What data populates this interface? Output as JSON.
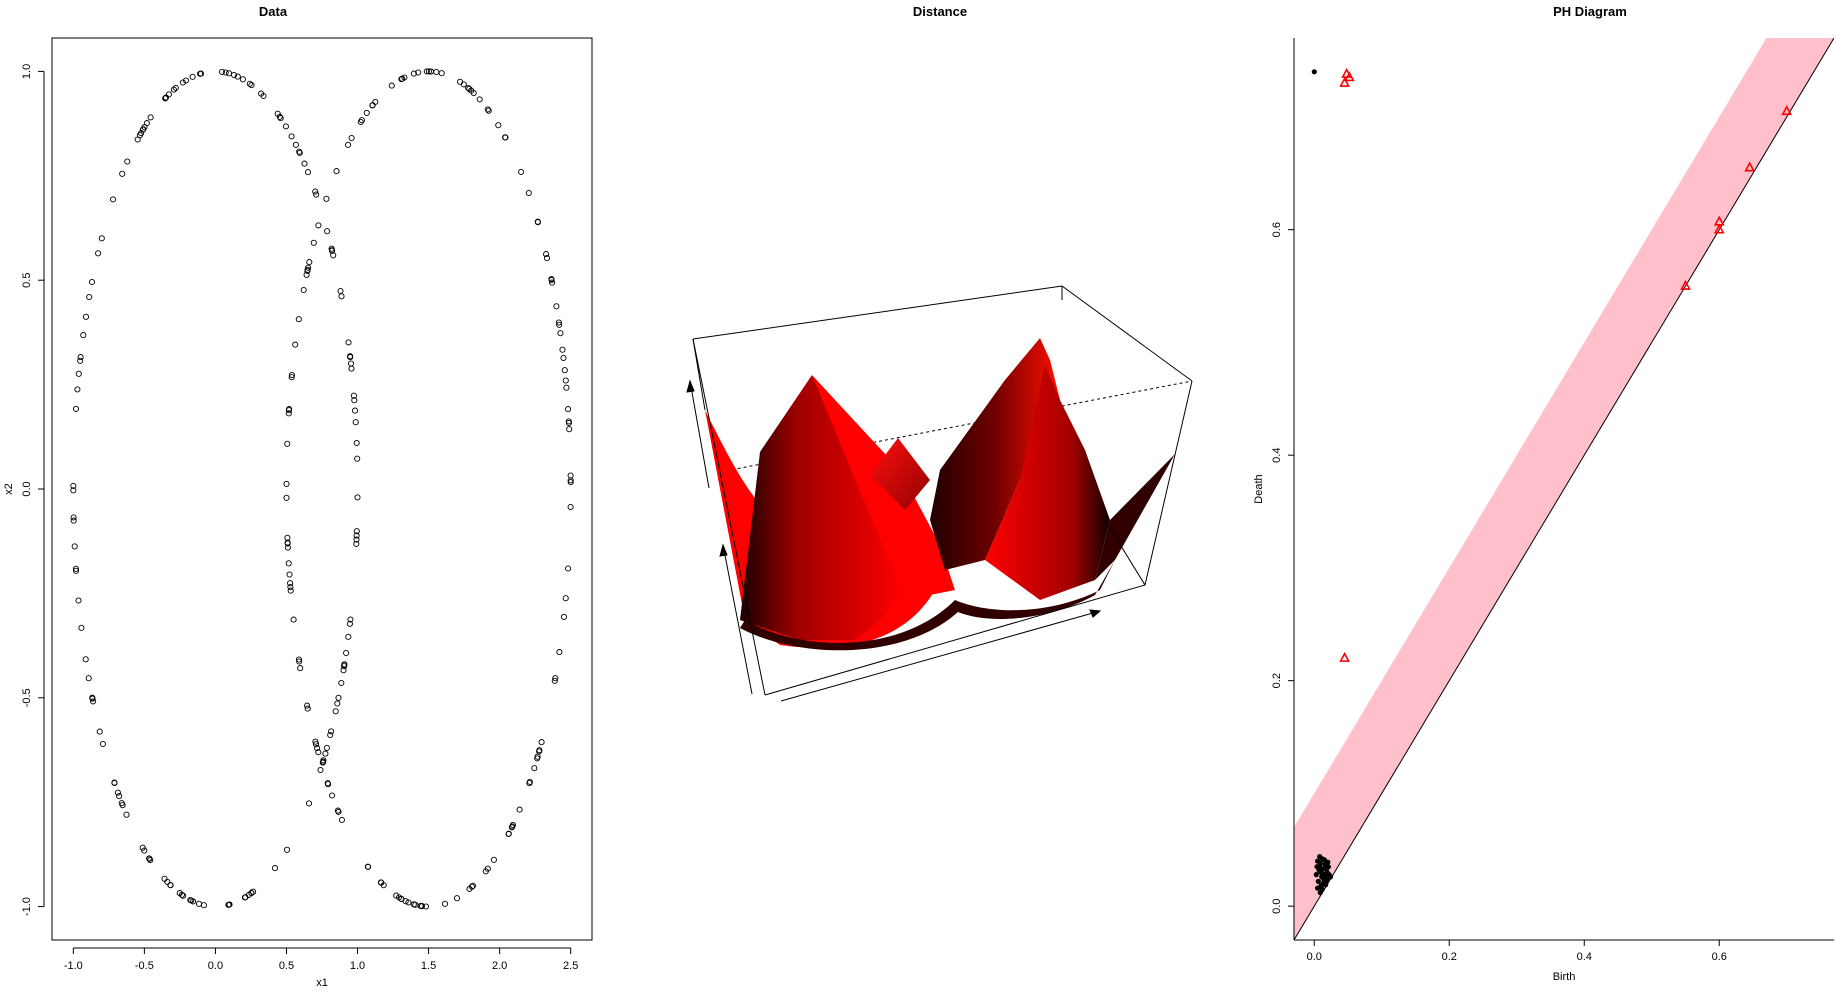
{
  "chart_data": [
    {
      "type": "scatter",
      "title": "Data",
      "xlabel": "x1",
      "ylabel": "x2",
      "xlim": [
        -1.15,
        2.65
      ],
      "ylim": [
        -1.08,
        1.08
      ],
      "xticks": [
        -1.0,
        -0.5,
        0.0,
        0.5,
        1.0,
        1.5,
        2.0,
        2.5
      ],
      "xtick_labels": [
        "-1.0",
        "-0.5",
        "0.0",
        "0.5",
        "1.0",
        "1.5",
        "2.0",
        "2.5"
      ],
      "yticks": [
        -1.0,
        -0.5,
        0.0,
        0.5,
        1.0
      ],
      "ytick_labels": [
        "-1.0",
        "-0.5",
        "0.0",
        "0.5",
        "1.0"
      ],
      "marker": "open-circle",
      "series": [
        {
          "shape": "ellipse",
          "center_x": 0.0,
          "center_y": 0.0,
          "radius_x": 1.0,
          "radius_y": 1.0,
          "n_points": 150
        },
        {
          "shape": "ellipse",
          "center_x": 1.5,
          "center_y": 0.0,
          "radius_x": 1.0,
          "radius_y": 1.0,
          "n_points": 150
        }
      ]
    },
    {
      "type": "surface3d",
      "title": "Distance",
      "surface_color": "#ff0000",
      "shadow_color": "#1a0000"
    },
    {
      "type": "scatter",
      "title": "PH Diagram",
      "xlabel": "Birth",
      "ylabel": "Death",
      "xlim": [
        -0.03,
        0.77
      ],
      "ylim": [
        -0.03,
        0.77
      ],
      "xticks": [
        0.0,
        0.2,
        0.4,
        0.6
      ],
      "xtick_labels": [
        "0.0",
        "0.2",
        "0.4",
        "0.6"
      ],
      "yticks": [
        0.0,
        0.2,
        0.4,
        0.6
      ],
      "ytick_labels": [
        "0.0",
        "0.2",
        "0.4",
        "0.6"
      ],
      "band_color": "#ffc0cb",
      "band_width": 0.1,
      "dim0_color": "#000000",
      "dim1_color": "#ff0000",
      "dim0_points": [
        [
          0.0,
          0.74
        ],
        [
          0.005,
          0.04
        ],
        [
          0.008,
          0.035
        ],
        [
          0.01,
          0.03
        ],
        [
          0.012,
          0.042
        ],
        [
          0.015,
          0.028
        ],
        [
          0.018,
          0.033
        ],
        [
          0.02,
          0.025
        ],
        [
          0.006,
          0.022
        ],
        [
          0.009,
          0.038
        ],
        [
          0.013,
          0.02
        ],
        [
          0.016,
          0.037
        ],
        [
          0.019,
          0.03
        ],
        [
          0.022,
          0.028
        ],
        [
          0.011,
          0.026
        ],
        [
          0.007,
          0.032
        ],
        [
          0.014,
          0.024
        ],
        [
          0.017,
          0.019
        ],
        [
          0.004,
          0.035
        ],
        [
          0.01,
          0.018
        ],
        [
          0.021,
          0.035
        ],
        [
          0.003,
          0.028
        ],
        [
          0.012,
          0.015
        ],
        [
          0.024,
          0.026
        ],
        [
          0.008,
          0.044
        ],
        [
          0.015,
          0.041
        ],
        [
          0.005,
          0.016
        ],
        [
          0.018,
          0.022
        ],
        [
          0.02,
          0.039
        ],
        [
          0.009,
          0.012
        ],
        [
          0.013,
          0.033
        ]
      ],
      "dim1_points": [
        [
          0.045,
          0.73
        ],
        [
          0.048,
          0.738
        ],
        [
          0.052,
          0.735
        ],
        [
          0.045,
          0.22
        ],
        [
          0.55,
          0.55
        ],
        [
          0.6,
          0.6
        ],
        [
          0.6,
          0.607
        ],
        [
          0.645,
          0.655
        ],
        [
          0.7,
          0.705
        ]
      ]
    }
  ]
}
